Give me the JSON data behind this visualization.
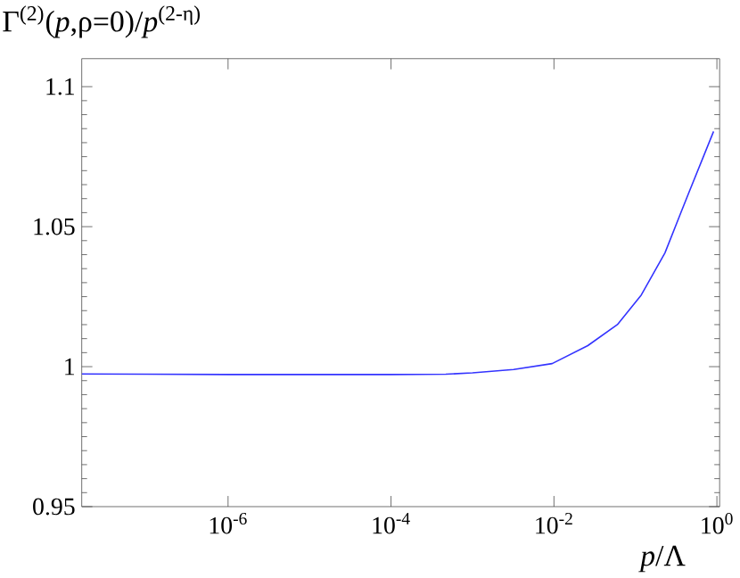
{
  "chart_data": {
    "type": "line",
    "ylabel": "Γ$^{(2)}$(*p*,ρ=0)/*p*$^{(2-η)}$",
    "xlabel": "*p*/Λ",
    "log": "x",
    "xlim": [
      1.6e-08,
      1.08
    ],
    "ylim": [
      0.95,
      1.11
    ],
    "xticks": [
      {
        "value": 1e-06,
        "label": "10$^{-6}$"
      },
      {
        "value": 0.0001,
        "label": "10$^{-4}$"
      },
      {
        "value": 0.01,
        "label": "10$^{-2}$"
      },
      {
        "value": 1,
        "label": "10$^{0}$"
      }
    ],
    "yticks": [
      0.95,
      1,
      1.05,
      1.1
    ],
    "x": [
      1.6e-08,
      1e-07,
      1e-06,
      1e-05,
      3e-05,
      0.0001,
      0.00047,
      0.001,
      0.0032,
      0.0095,
      0.026,
      0.06,
      0.118,
      0.23,
      0.45,
      0.91
    ],
    "series": [
      {
        "color": "#3333ff",
        "values": [
          0.9974,
          0.9973,
          0.9972,
          0.9972,
          0.9972,
          0.9972,
          0.9973,
          0.9978,
          0.999,
          1.0011,
          1.0075,
          1.015,
          1.0256,
          1.0406,
          1.062,
          1.084
        ]
      }
    ]
  }
}
